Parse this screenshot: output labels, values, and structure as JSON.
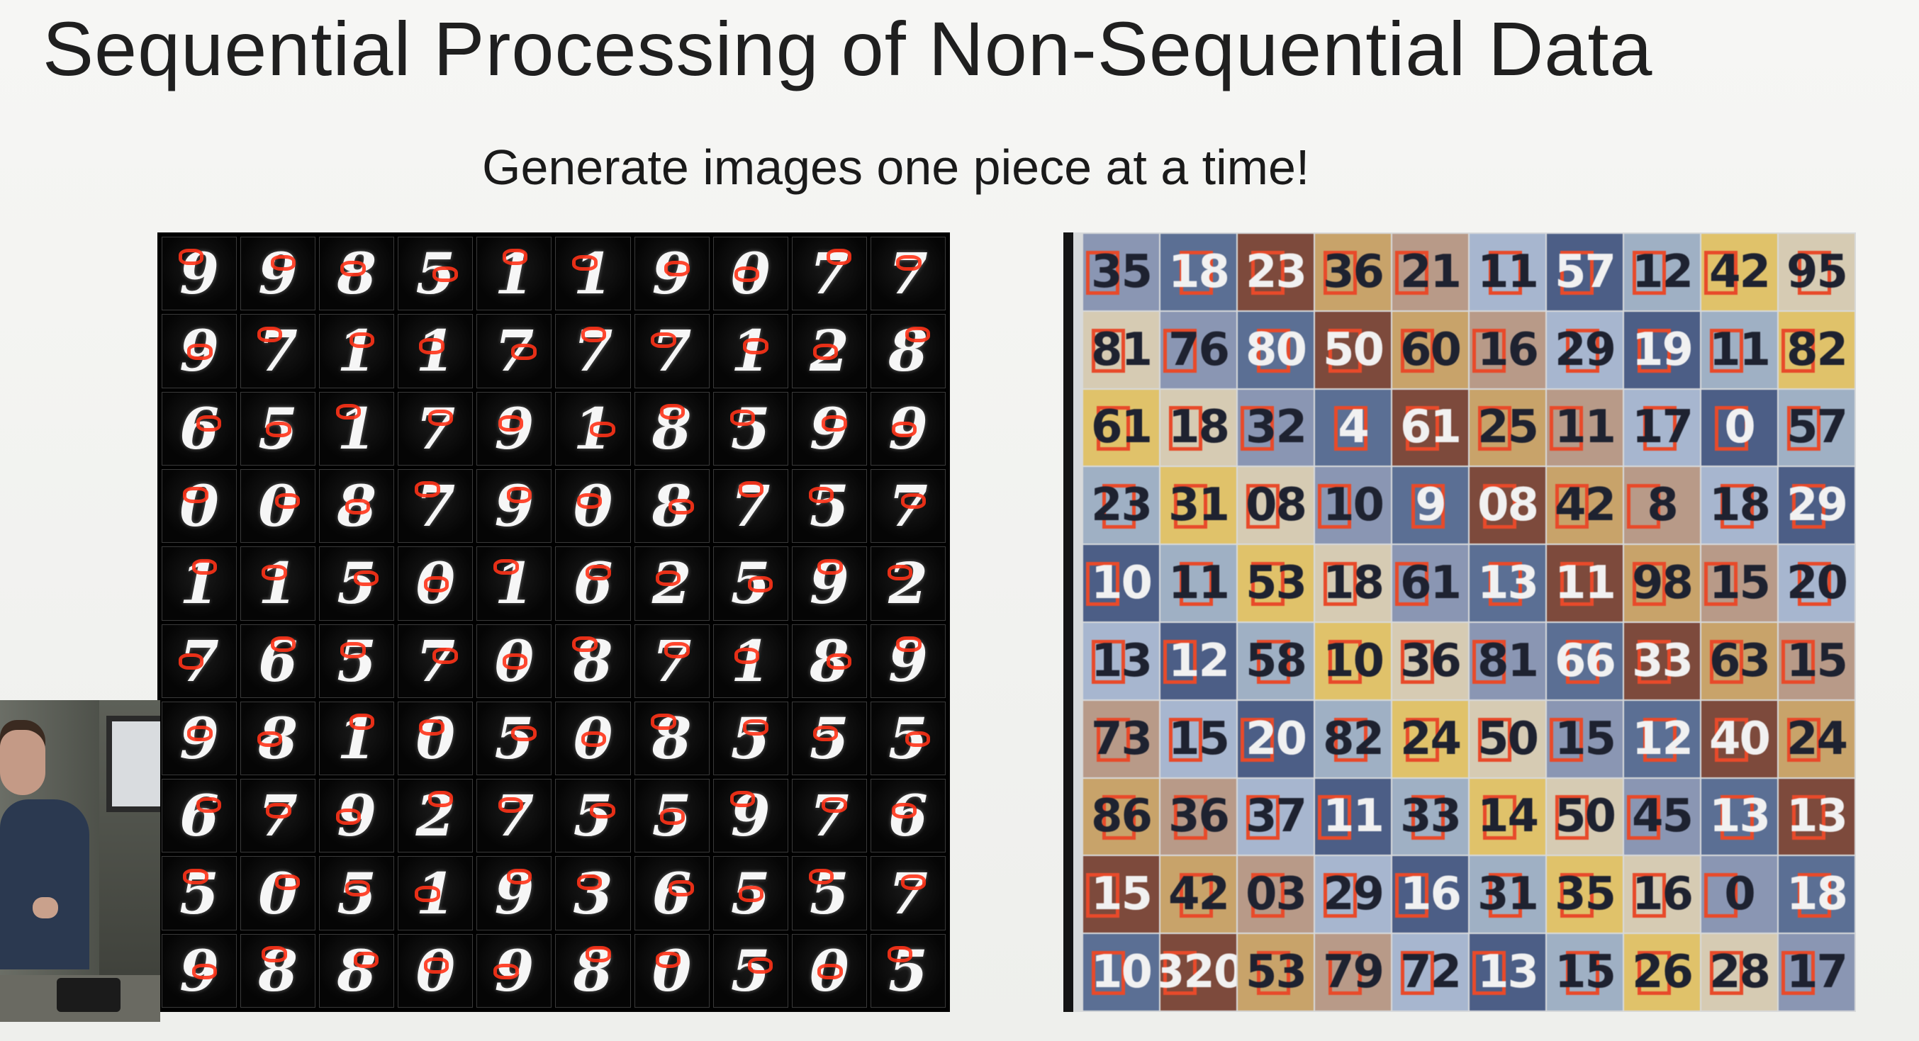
{
  "slide": {
    "title": "Sequential Processing of Non-Sequential Data",
    "subtitle": "Generate images one piece at a time!"
  },
  "mnist_samples": {
    "rows": [
      [
        "9",
        "9",
        "8",
        "5",
        "1",
        "1",
        "9",
        "0",
        "7",
        "7"
      ],
      [
        "9",
        "7",
        "1",
        "1",
        "7",
        "7",
        "7",
        "1",
        "2",
        "8"
      ],
      [
        "6",
        "5",
        "1",
        "7",
        "9",
        "1",
        "8",
        "5",
        "9",
        "9"
      ],
      [
        "0",
        "0",
        "8",
        "7",
        "9",
        "0",
        "8",
        "7",
        "5",
        "7"
      ],
      [
        "1",
        "1",
        "5",
        "0",
        "1",
        "6",
        "2",
        "5",
        "9",
        "2"
      ],
      [
        "7",
        "6",
        "5",
        "7",
        "0",
        "8",
        "7",
        "1",
        "8",
        "9"
      ],
      [
        "9",
        "8",
        "1",
        "0",
        "5",
        "0",
        "8",
        "5",
        "5",
        "5"
      ],
      [
        "6",
        "7",
        "9",
        "2",
        "7",
        "5",
        "5",
        "9",
        "7",
        "6"
      ],
      [
        "5",
        "0",
        "5",
        "1",
        "9",
        "3",
        "6",
        "5",
        "5",
        "7"
      ],
      [
        "9",
        "8",
        "8",
        "0",
        "9",
        "8",
        "0",
        "5",
        "0",
        "5"
      ]
    ],
    "digit_color": "#f6f6f6",
    "stroke_color": "#ff3318"
  },
  "svhn_samples": {
    "rows": [
      [
        "35",
        "18",
        "23",
        "36",
        "21",
        "11",
        "57",
        "12",
        "42",
        "95"
      ],
      [
        "81",
        "76",
        "80",
        "50",
        "60",
        "16",
        "29",
        "19",
        "11",
        "82"
      ],
      [
        "61",
        "18",
        "32",
        "4",
        "61",
        "25",
        "11",
        "17",
        "0",
        "57"
      ],
      [
        "23",
        "31",
        "08",
        "10",
        "9",
        "08",
        "42",
        "8",
        "18",
        "29"
      ],
      [
        "10",
        "11",
        "53",
        "18",
        "61",
        "13",
        "11",
        "98",
        "15",
        "20"
      ],
      [
        "13",
        "12",
        "58",
        "10",
        "36",
        "81",
        "66",
        "33",
        "63",
        "15"
      ],
      [
        "73",
        "15",
        "20",
        "82",
        "24",
        "50",
        "15",
        "12",
        "40",
        "24"
      ],
      [
        "86",
        "36",
        "37",
        "11",
        "33",
        "14",
        "50",
        "45",
        "13",
        "13"
      ],
      [
        "15",
        "42",
        "03",
        "29",
        "16",
        "31",
        "35",
        "16",
        "0",
        "18"
      ],
      [
        "10",
        "320",
        "53",
        "79",
        "72",
        "13",
        "15",
        "26",
        "28",
        "17"
      ]
    ],
    "glimpse_color": "#e84a2a",
    "palette": [
      "#8a96b3",
      "#c8a36a",
      "#4c5e86",
      "#d6cbb3",
      "#7d4a3c",
      "#a7b6cf",
      "#e0c26a",
      "#5b6f94",
      "#b89a88",
      "#9fb0c4"
    ]
  },
  "webcam": {
    "label": ""
  }
}
